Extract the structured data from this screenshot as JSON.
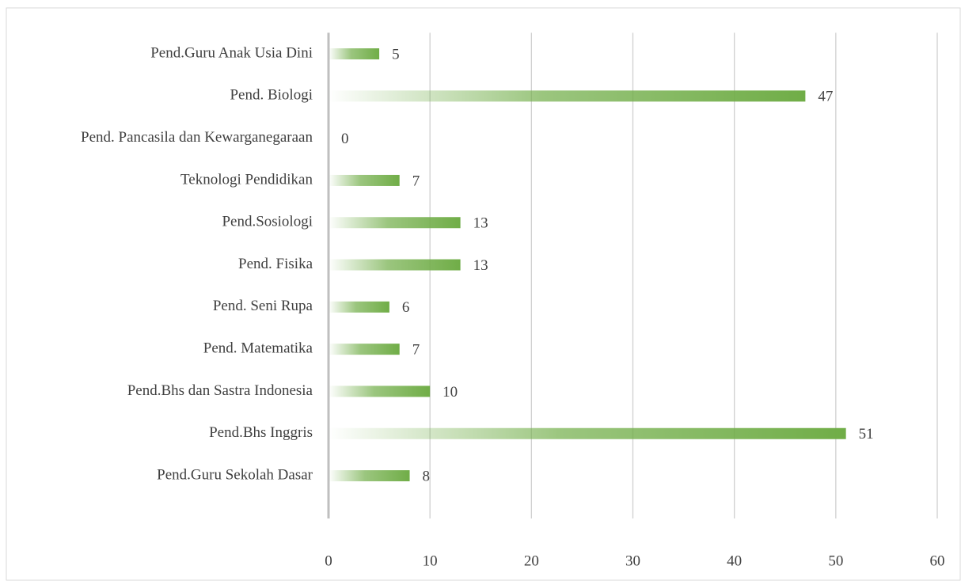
{
  "chart_data": {
    "type": "barh",
    "categories": [
      "Pend.Guru Anak Usia Dini",
      "Pend. Biologi",
      "Pend. Pancasila dan Kewarganegaraan",
      "Teknologi Pendidikan",
      "Pend.Sosiologi",
      "Pend. Fisika",
      "Pend. Seni Rupa",
      "Pend. Matematika",
      "Pend.Bhs dan Sastra Indonesia",
      "Pend.Bhs Inggris",
      "Pend.Guru Sekolah Dasar"
    ],
    "values": [
      5,
      47,
      0,
      7,
      13,
      13,
      6,
      7,
      10,
      51,
      8
    ],
    "color": "#70ad47",
    "xlim": [
      0,
      60
    ],
    "xticks": [
      0,
      10,
      20,
      30,
      40,
      50,
      60
    ],
    "grid": true
  }
}
